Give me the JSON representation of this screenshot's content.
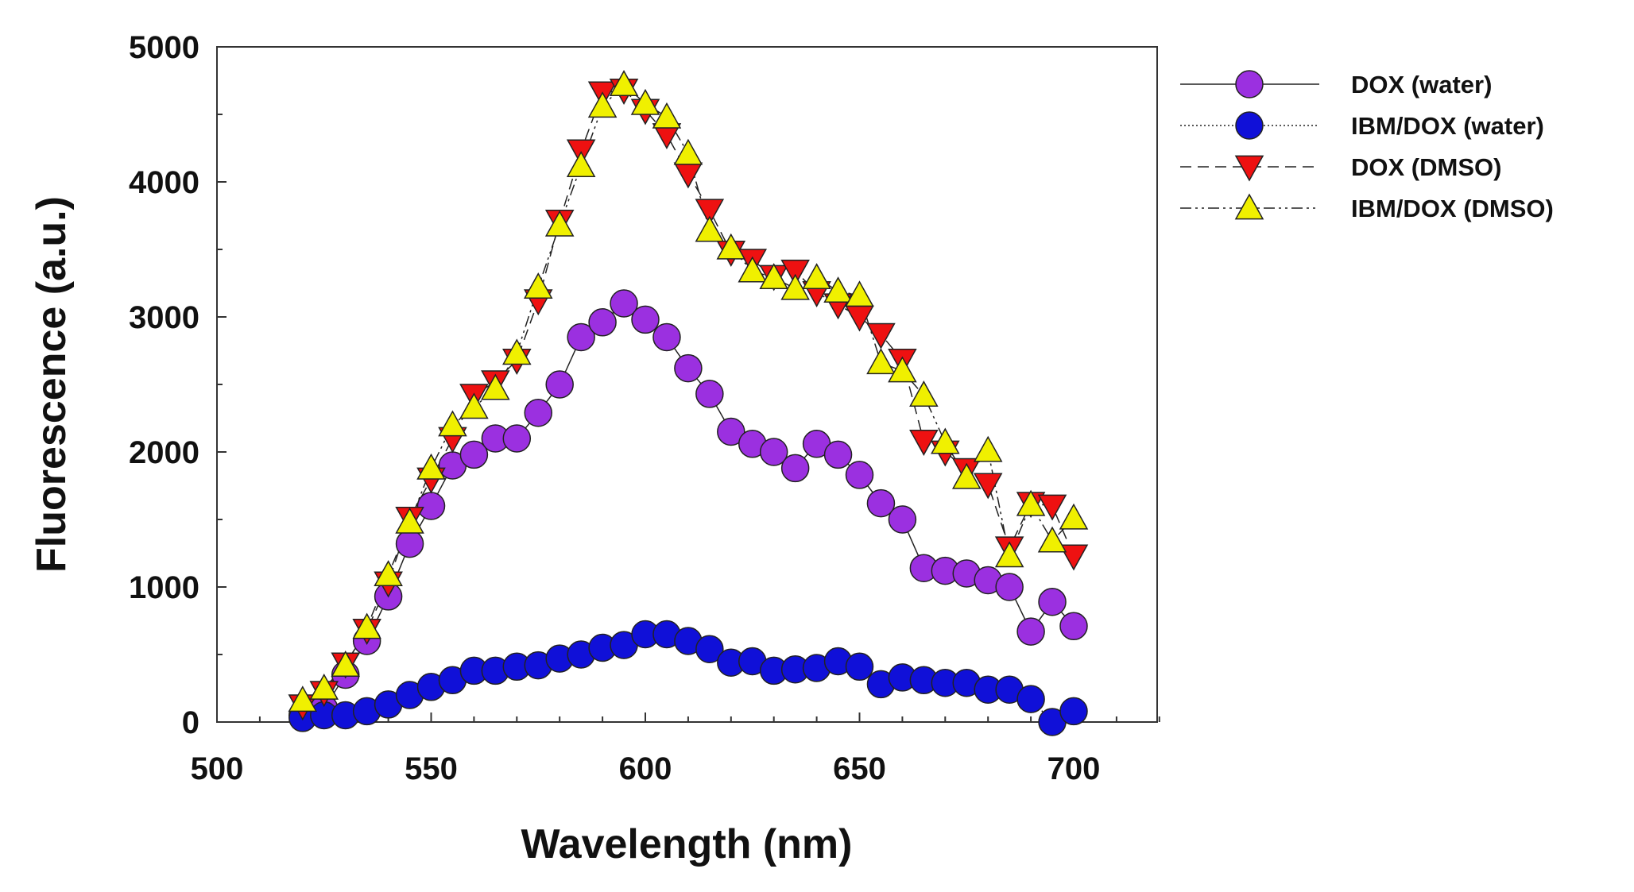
{
  "chart_data": {
    "type": "scatter",
    "title": "",
    "xlabel": "Wavelength (nm)",
    "ylabel": "Fluorescence (a.u.)",
    "xlim": [
      500,
      720
    ],
    "ylim": [
      0,
      5000
    ],
    "xticks": [
      500,
      550,
      600,
      650,
      700
    ],
    "yticks": [
      0,
      1000,
      2000,
      3000,
      4000,
      5000
    ],
    "grid": false,
    "legend_position": "top-right outside",
    "x": [
      520,
      525,
      530,
      535,
      540,
      545,
      550,
      555,
      560,
      565,
      570,
      575,
      580,
      585,
      590,
      595,
      600,
      605,
      610,
      615,
      620,
      625,
      630,
      635,
      640,
      645,
      650,
      655,
      660,
      665,
      670,
      675,
      680,
      685,
      690,
      695,
      700
    ],
    "series": [
      {
        "name": "DOX (water)",
        "marker": "circle",
        "line": "solid",
        "color": "#9b30e0",
        "values": [
          50,
          100,
          350,
          600,
          930,
          1320,
          1600,
          1900,
          1980,
          2100,
          2100,
          2290,
          2500,
          2850,
          2960,
          3100,
          2980,
          2850,
          2620,
          2430,
          2150,
          2060,
          2000,
          1880,
          2060,
          1980,
          1830,
          1620,
          1500,
          1140,
          1120,
          1100,
          1050,
          1000,
          670,
          890,
          710
        ]
      },
      {
        "name": "IBM/DOX (water)",
        "marker": "circle",
        "line": "dotted",
        "color": "#1010d8",
        "values": [
          30,
          50,
          50,
          80,
          130,
          200,
          260,
          310,
          380,
          380,
          410,
          420,
          470,
          500,
          550,
          570,
          650,
          650,
          600,
          540,
          440,
          450,
          380,
          390,
          400,
          450,
          410,
          280,
          330,
          310,
          290,
          290,
          240,
          240,
          170,
          0,
          80
        ]
      },
      {
        "name": "DOX (DMSO)",
        "marker": "triangle-down",
        "line": "dashed",
        "color": "#ee1111",
        "values": [
          120,
          220,
          430,
          680,
          1030,
          1510,
          1800,
          2100,
          2420,
          2520,
          2680,
          3120,
          3710,
          4230,
          4660,
          4680,
          4530,
          4350,
          4060,
          3790,
          3480,
          3420,
          3300,
          3340,
          3180,
          3090,
          3000,
          2870,
          2680,
          2080,
          2000,
          1870,
          1760,
          1290,
          1620,
          1600,
          1230
        ]
      },
      {
        "name": "IBM/DOX (DMSO)",
        "marker": "triangle-up",
        "line": "dash-dot-dot",
        "color": "#f0f000",
        "values": [
          160,
          250,
          420,
          700,
          1090,
          1480,
          1880,
          2200,
          2330,
          2470,
          2730,
          3220,
          3680,
          4120,
          4560,
          4720,
          4580,
          4480,
          4210,
          3640,
          3510,
          3340,
          3290,
          3210,
          3290,
          3190,
          3160,
          2660,
          2600,
          2420,
          2070,
          1810,
          2010,
          1230,
          1610,
          1340,
          1510
        ]
      }
    ]
  }
}
